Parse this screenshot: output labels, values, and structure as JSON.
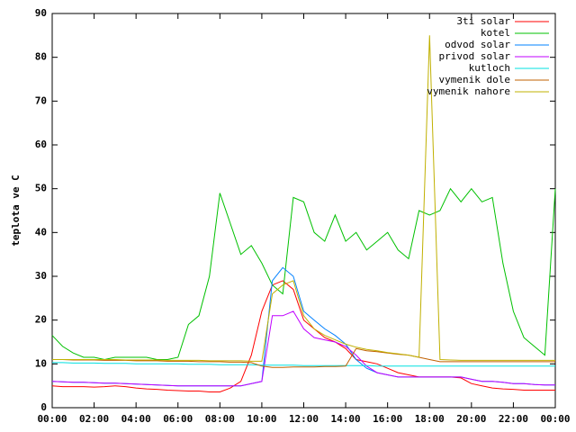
{
  "chart_data": {
    "type": "line",
    "y_label": "teplota ve C",
    "x": [
      0,
      0.5,
      1,
      1.5,
      2,
      2.5,
      3,
      3.5,
      4,
      4.5,
      5,
      5.5,
      6,
      6.5,
      7,
      7.5,
      8,
      8.5,
      9,
      9.5,
      10,
      10.5,
      11,
      11.5,
      12,
      12.5,
      13,
      13.5,
      14,
      14.5,
      15,
      15.5,
      16,
      16.5,
      17,
      17.5,
      18,
      18.5,
      19,
      19.5,
      20,
      20.5,
      21,
      21.5,
      22,
      22.5,
      23,
      23.5,
      24
    ],
    "xlim": [
      0,
      24
    ],
    "xticks": [
      {
        "value": 0,
        "label": "00:00"
      },
      {
        "value": 2,
        "label": "02:00"
      },
      {
        "value": 4,
        "label": "04:00"
      },
      {
        "value": 6,
        "label": "06:00"
      },
      {
        "value": 8,
        "label": "08:00"
      },
      {
        "value": 10,
        "label": "10:00"
      },
      {
        "value": 12,
        "label": "12:00"
      },
      {
        "value": 14,
        "label": "14:00"
      },
      {
        "value": 16,
        "label": "16:00"
      },
      {
        "value": 18,
        "label": "18:00"
      },
      {
        "value": 20,
        "label": "20:00"
      },
      {
        "value": 22,
        "label": "22:00"
      },
      {
        "value": 24,
        "label": "00:00"
      }
    ],
    "ylim": [
      0,
      90
    ],
    "yticks": [
      0,
      10,
      20,
      30,
      40,
      50,
      60,
      70,
      80,
      90
    ],
    "legend": "upper right",
    "series": [
      {
        "name": "3ti solar",
        "color": "#ff0000",
        "values": [
          5,
          4.8,
          4.8,
          4.8,
          4.7,
          4.8,
          5,
          4.8,
          4.5,
          4.3,
          4.2,
          4,
          3.9,
          3.8,
          3.8,
          3.6,
          3.6,
          4.5,
          6,
          12,
          22,
          28,
          29,
          27,
          20,
          18,
          16,
          15,
          13.5,
          11,
          10.5,
          10,
          9,
          8,
          7.5,
          7,
          7,
          7,
          7,
          6.8,
          5.5,
          5,
          4.5,
          4.3,
          4.2,
          4,
          4,
          4,
          4
        ]
      },
      {
        "name": "kotel",
        "color": "#00c000",
        "values": [
          16.5,
          14,
          12.5,
          11.5,
          11.5,
          11,
          11.5,
          11.5,
          11.5,
          11.5,
          11,
          11,
          11.5,
          19,
          21,
          30,
          49,
          42,
          35,
          37,
          33,
          28,
          26,
          48,
          47,
          40,
          38,
          44,
          38,
          40,
          36,
          38,
          40,
          36,
          34,
          45,
          44,
          45,
          50,
          47,
          50,
          47,
          48,
          33,
          22,
          16,
          14,
          12,
          50
        ]
      },
      {
        "name": "odvod solar",
        "color": "#0080ff",
        "values": [
          6,
          5.9,
          5.8,
          5.8,
          5.7,
          5.6,
          5.6,
          5.5,
          5.4,
          5.3,
          5.2,
          5.1,
          5,
          5,
          5,
          5,
          5,
          5,
          5,
          5.5,
          6,
          29,
          32,
          30,
          22,
          20,
          18,
          16.5,
          14.5,
          11,
          9,
          8,
          7.5,
          7,
          7,
          7,
          7,
          7,
          7,
          7,
          6.5,
          6,
          6,
          5.8,
          5.5,
          5.5,
          5.3,
          5.2,
          5.2
        ]
      },
      {
        "name": "privod solar",
        "color": "#c000ff",
        "values": [
          6,
          5.9,
          5.8,
          5.8,
          5.7,
          5.6,
          5.6,
          5.5,
          5.4,
          5.3,
          5.2,
          5.1,
          5,
          5,
          5,
          5,
          5,
          5,
          5,
          5.5,
          6,
          21,
          21,
          22,
          18,
          16,
          15.5,
          15,
          14,
          12,
          9.5,
          8,
          7.5,
          7,
          7,
          7,
          7,
          7,
          7,
          7,
          6.5,
          6,
          6,
          5.8,
          5.5,
          5.5,
          5.3,
          5.2,
          5.2
        ]
      },
      {
        "name": "kutloch",
        "color": "#00e0e0",
        "values": [
          10.3,
          10.3,
          10.2,
          10.2,
          10.2,
          10.1,
          10.1,
          10.1,
          10,
          10,
          10,
          10,
          10,
          9.9,
          9.9,
          9.9,
          9.8,
          9.8,
          9.8,
          9.8,
          9.7,
          9.7,
          9.7,
          9.7,
          9.6,
          9.6,
          9.6,
          9.6,
          9.6,
          9.6,
          9.6,
          9.5,
          9.5,
          9.5,
          9.5,
          9.5,
          9.5,
          9.5,
          9.5,
          9.5,
          9.5,
          9.5,
          9.5,
          9.5,
          9.5,
          9.5,
          9.5,
          9.5,
          9.5
        ]
      },
      {
        "name": "vymenik dole",
        "color": "#c06000",
        "values": [
          11,
          11,
          10.9,
          10.9,
          10.9,
          10.8,
          10.8,
          10.8,
          10.7,
          10.7,
          10.7,
          10.6,
          10.6,
          10.6,
          10.5,
          10.5,
          10.5,
          10.4,
          10.4,
          10.3,
          9.5,
          9.2,
          9.2,
          9.3,
          9.3,
          9.3,
          9.4,
          9.4,
          9.5,
          13.5,
          13,
          12.8,
          12.5,
          12.2,
          12,
          11.5,
          11,
          10.5,
          10.5,
          10.5,
          10.5,
          10.5,
          10.5,
          10.5,
          10.5,
          10.5,
          10.5,
          10.5,
          10.5
        ]
      },
      {
        "name": "vymenik nahore",
        "color": "#c0b000",
        "values": [
          11,
          11,
          11,
          11,
          11,
          11,
          11,
          10.9,
          10.9,
          10.9,
          10.9,
          10.8,
          10.8,
          10.8,
          10.8,
          10.7,
          10.7,
          10.7,
          10.7,
          10.6,
          10.6,
          26,
          28,
          29,
          21,
          18,
          16.5,
          15.5,
          14.5,
          13.8,
          13.3,
          13,
          12.6,
          12.3,
          12,
          11.5,
          85,
          11,
          10.9,
          10.8,
          10.8,
          10.8,
          10.8,
          10.8,
          10.8,
          10.8,
          10.8,
          10.8,
          10.8
        ]
      }
    ]
  }
}
